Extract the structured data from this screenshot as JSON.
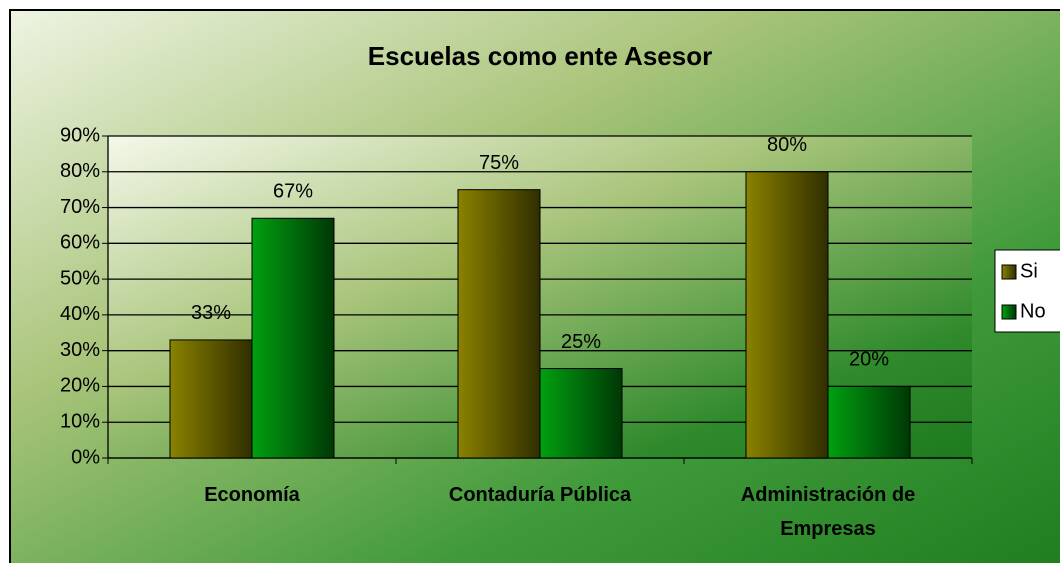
{
  "chart_data": {
    "type": "bar",
    "title": "Escuelas como ente Asesor",
    "categories": [
      "Economía",
      "Contaduría Pública",
      "Administración de Empresas"
    ],
    "series": [
      {
        "name": "Si",
        "color": "#8a8200",
        "values": [
          33,
          75,
          80
        ],
        "value_labels": [
          "33%",
          "75%",
          "80%"
        ]
      },
      {
        "name": "No",
        "color": "#00a010",
        "values": [
          67,
          25,
          20
        ],
        "value_labels": [
          "67%",
          "25%",
          "20%"
        ]
      }
    ],
    "ylim": [
      0,
      90
    ],
    "yticks": [
      {
        "value": 0,
        "label": "0%"
      },
      {
        "value": 10,
        "label": "10%"
      },
      {
        "value": 20,
        "label": "20%"
      },
      {
        "value": 30,
        "label": "30%"
      },
      {
        "value": 40,
        "label": "40%"
      },
      {
        "value": 50,
        "label": "50%"
      },
      {
        "value": 60,
        "label": "60%"
      },
      {
        "value": 70,
        "label": "70%"
      },
      {
        "value": 80,
        "label": "80%"
      },
      {
        "value": 90,
        "label": "90%"
      }
    ],
    "grid": true,
    "legend": "right"
  }
}
